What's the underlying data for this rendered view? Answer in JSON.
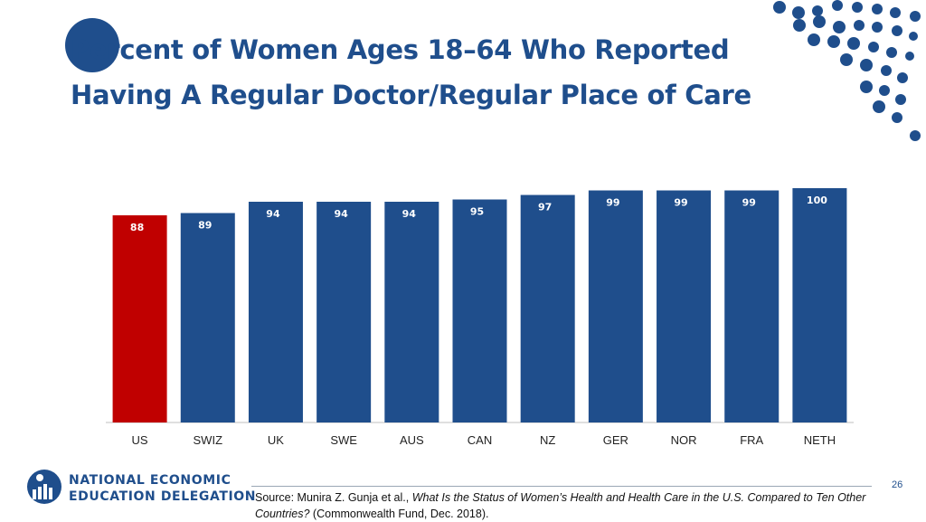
{
  "title": {
    "line1": "Percent of Women Ages 18–64 Who Reported",
    "line2": "Having A Regular Doctor/Regular Place of Care"
  },
  "colors": {
    "title": "#1F4E8C",
    "bar_default": "#1F4E8C",
    "bar_highlight": "#C00000",
    "label_on_default": "#ffffff",
    "label_on_highlight": "#ffffff",
    "dots": "#1F4E8C"
  },
  "chart_data": {
    "type": "bar",
    "categories": [
      "US",
      "SWIZ",
      "UK",
      "SWE",
      "AUS",
      "CAN",
      "NZ",
      "GER",
      "NOR",
      "FRA",
      "NETH"
    ],
    "values": [
      88,
      89,
      94,
      94,
      94,
      95,
      97,
      99,
      99,
      99,
      100
    ],
    "highlight_category": "US",
    "data_labels": true,
    "title": "",
    "xlabel": "",
    "ylabel": "",
    "grid": false,
    "legend": "none"
  },
  "footer": {
    "page_number": "26",
    "source_prefix": "Source: Munira Z. Gunja et al., ",
    "source_title": "What Is the Status of Women’s Health and Health Care in the U.S. Compared to Ten Other Countries?",
    "source_suffix": " (Commonwealth Fund, Dec. 2018)."
  },
  "logo": {
    "line1": "NATIONAL ECONOMIC",
    "line2": "EDUCATION DELEGATION",
    "icon": "need-logo-icon"
  }
}
